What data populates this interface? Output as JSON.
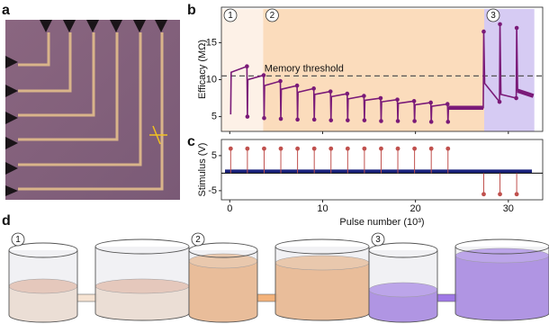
{
  "panels": {
    "a": "a",
    "d": "d"
  },
  "chart_data": [
    {
      "type": "line",
      "panel": "b",
      "ylabel": "Efficacy (MΩ)",
      "xlim": [
        -0.9,
        33.7
      ],
      "ylim": [
        3,
        19.8
      ],
      "yticks": [
        5,
        10,
        15
      ],
      "threshold": {
        "text": "Memory threshold",
        "value": 10.5
      },
      "regions": [
        {
          "label": "1",
          "x": [
            -0.9,
            3.6
          ],
          "color": "#fdf1e7"
        },
        {
          "label": "2",
          "x": [
            3.6,
            27.4
          ],
          "color": "#fbdcbc"
        },
        {
          "label": "3",
          "x": [
            27.4,
            32.8
          ],
          "color": "#d6cbf3"
        }
      ],
      "series": [
        {
          "color": "#7a1a78",
          "x": [
            0.1,
            0.15,
            1.85,
            1.9,
            1.95,
            3.65,
            3.7,
            3.75,
            5.45,
            5.5,
            5.55,
            7.25,
            7.3,
            7.35,
            9.05,
            9.1,
            9.15,
            10.85,
            10.9,
            10.95,
            12.65,
            12.7,
            12.75,
            14.45,
            14.5,
            14.55,
            16.25,
            16.3,
            16.35,
            18.05,
            18.1,
            18.15,
            19.85,
            19.9,
            19.95,
            21.65,
            21.7,
            21.75,
            23.45,
            23.5,
            23.55,
            27.3,
            27.35,
            27.45,
            29.05,
            29.1,
            29.2,
            30.85,
            30.9,
            31.0,
            32.7
          ],
          "values": [
            5.3,
            11.0,
            11.8,
            5.0,
            10.0,
            10.6,
            4.8,
            9.2,
            9.8,
            4.7,
            8.7,
            9.2,
            4.6,
            8.3,
            8.8,
            4.6,
            8.0,
            8.4,
            4.5,
            7.7,
            8.1,
            4.5,
            7.4,
            7.8,
            4.5,
            7.2,
            7.5,
            4.4,
            7.0,
            7.3,
            4.4,
            6.8,
            7.1,
            4.4,
            6.6,
            6.9,
            4.3,
            6.4,
            6.7,
            4.3,
            6.2,
            6.2,
            16.5,
            9.5,
            7.0,
            17.5,
            8.0,
            7.5,
            17.0,
            8.5,
            7.8
          ]
        }
      ]
    },
    {
      "type": "stem",
      "panel": "c",
      "ylabel": "Stimulus (V)",
      "xlabel": "Pulse number (10³)",
      "xlim": [
        -0.9,
        33.7
      ],
      "ylim": [
        -7.6,
        9.6
      ],
      "xticks": [
        0,
        10,
        20,
        30
      ],
      "yticks": [
        -5,
        5
      ],
      "baseline_color": "#1a237e",
      "series": [
        {
          "color": "#c0504d",
          "x": [
            0.1,
            1.9,
            3.7,
            5.5,
            7.3,
            9.1,
            10.9,
            12.7,
            14.5,
            16.3,
            18.1,
            19.9,
            21.7,
            23.5,
            27.35,
            29.1,
            30.9
          ],
          "values": [
            7,
            7,
            7,
            7,
            7,
            7,
            7,
            7,
            7,
            7,
            7,
            7,
            7,
            7,
            -6,
            -6,
            -6
          ]
        }
      ]
    }
  ],
  "diagram": {
    "steps": [
      "1",
      "2",
      "3"
    ]
  }
}
